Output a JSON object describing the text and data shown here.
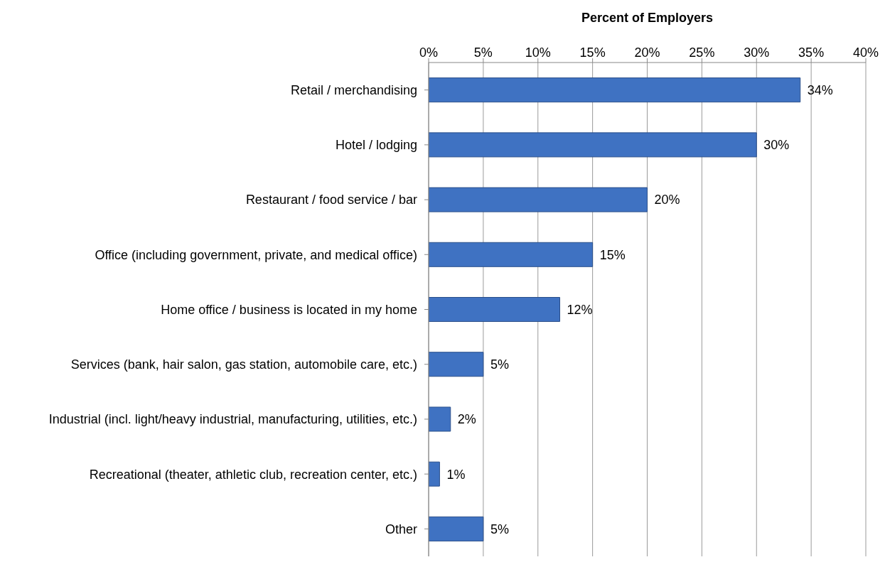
{
  "chart_data": {
    "type": "bar",
    "orientation": "horizontal",
    "xlabel": "Percent of Employers",
    "categories": [
      "Retail / merchandising",
      "Hotel / lodging",
      "Restaurant / food service / bar",
      "Office (including government, private, and medical office)",
      "Home office / business is located in my home",
      "Services (bank, hair salon, gas station, automobile care, etc.)",
      "Industrial (incl. light/heavy industrial, manufacturing, utilities, etc.)",
      "Recreational (theater, athletic club, recreation center, etc.)",
      "Other"
    ],
    "values": [
      34,
      30,
      20,
      15,
      12,
      5,
      2,
      1,
      5
    ],
    "value_labels": [
      "34%",
      "30%",
      "20%",
      "15%",
      "12%",
      "5%",
      "2%",
      "1%",
      "5%"
    ],
    "color": "#3f72c2",
    "xlim": [
      0,
      40
    ],
    "xticks": [
      {
        "value": 0,
        "label": "0%"
      },
      {
        "value": 5,
        "label": "5%"
      },
      {
        "value": 10,
        "label": "10%"
      },
      {
        "value": 15,
        "label": "15%"
      },
      {
        "value": 20,
        "label": "20%"
      },
      {
        "value": 25,
        "label": "25%"
      },
      {
        "value": 30,
        "label": "30%"
      },
      {
        "value": 35,
        "label": "35%"
      },
      {
        "value": 40,
        "label": "40%"
      }
    ],
    "grid": "x"
  }
}
